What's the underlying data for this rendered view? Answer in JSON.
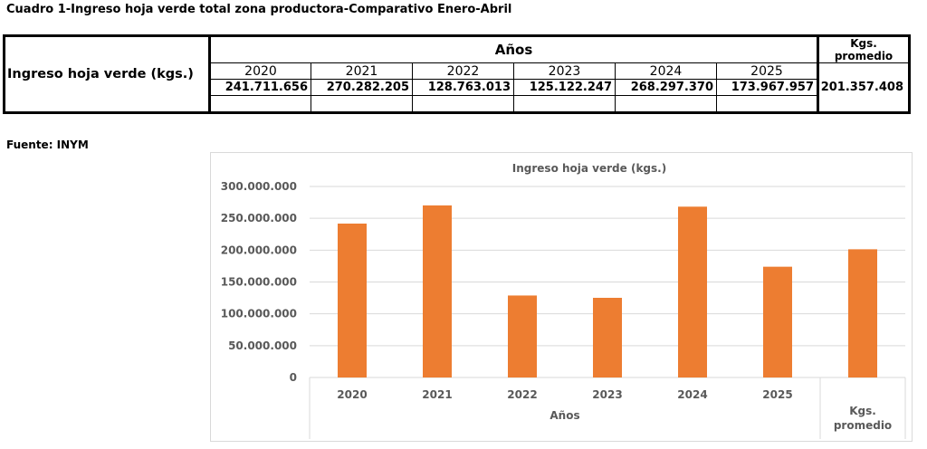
{
  "title": "Cuadro 1-Ingreso hoja verde total zona productora-Comparativo Enero-Abril",
  "table": {
    "header_years": "Años",
    "header_avg": "Kgs. promedio",
    "years": [
      "2020",
      "2021",
      "2022",
      "2023",
      "2024",
      "2025"
    ],
    "row_label": "Ingreso hoja verde (kgs.)",
    "values": [
      "241.711.656",
      "270.282.205",
      "128.763.013",
      "125.122.247",
      "268.297.370",
      "173.967.957"
    ],
    "avg_value": "201.357.408"
  },
  "source": "Fuente: INYM",
  "colors": {
    "bar": "#ED7D31",
    "grid": "#d9d9d9",
    "axis_text": "#595959"
  },
  "chart_data": {
    "type": "bar",
    "title": "Ingreso hoja verde (kgs.)",
    "categories": [
      "2020",
      "2021",
      "2022",
      "2023",
      "2024",
      "2025",
      "Kgs. promedio"
    ],
    "category_groups": [
      {
        "label": "Años",
        "categories": [
          "2020",
          "2021",
          "2022",
          "2023",
          "2024",
          "2025"
        ]
      },
      {
        "label": "Kgs. promedio",
        "categories": [
          ""
        ]
      }
    ],
    "values": [
      241711656,
      270282205,
      128763013,
      125122247,
      268297370,
      173967957,
      201357408
    ],
    "ylim": [
      0,
      300000000
    ],
    "yticks": [
      0,
      50000000,
      100000000,
      150000000,
      200000000,
      250000000,
      300000000
    ],
    "ytick_labels": [
      "0",
      "50.000.000",
      "100.000.000",
      "150.000.000",
      "200.000.000",
      "250.000.000",
      "300.000.000"
    ],
    "xlabel": "Años",
    "ylabel": "",
    "grid": true,
    "legend": false
  }
}
